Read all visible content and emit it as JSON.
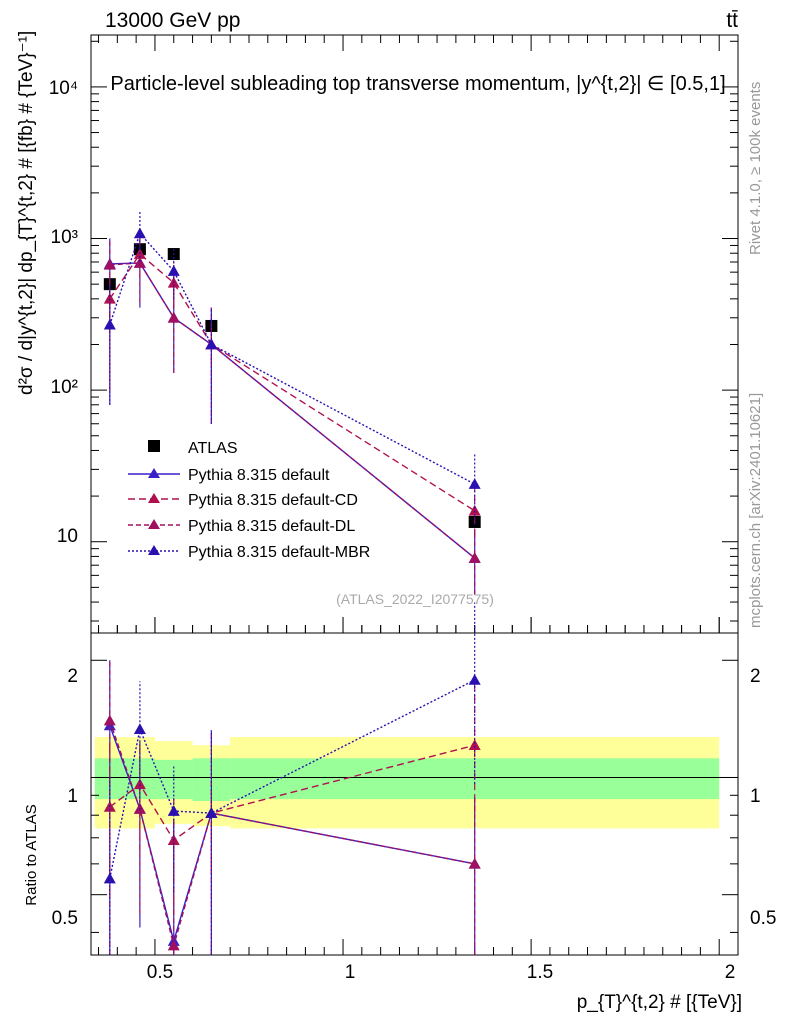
{
  "header": {
    "energy": "13000 GeV pp",
    "process": "tt̄",
    "title": "Particle-level subleading top transverse momentum, |y^{t,2}| ∈ [0.5,1]",
    "watermark": "(ATLAS_2022_I2077575)",
    "rivet": "Rivet 4.1.0, ≥ 100k events",
    "mcplots": "mcplots.cern.ch [arXiv:2401.10621]"
  },
  "labels": {
    "ylabel_main": "d²σ / d|y^{t,2}| dp_{T}^{t,2} # [{fb} # {TeV}⁻¹]",
    "ylabel_ratio": "Ratio to ATLAS",
    "xlabel": "p_{T}^{t,2} # [{TeV}]"
  },
  "axes": {
    "main_yticks": [
      "10",
      "10²",
      "10³",
      "10⁴"
    ],
    "ratio_yticks": [
      "0.5",
      "1",
      "2"
    ],
    "xticks": [
      "0.5",
      "1",
      "1.5",
      "2"
    ]
  },
  "chart_data": {
    "type": "line",
    "x": [
      0.38,
      0.46,
      0.55,
      0.65,
      1.35
    ],
    "bins": [
      [
        0.34,
        0.43
      ],
      [
        0.43,
        0.5
      ],
      [
        0.5,
        0.6
      ],
      [
        0.6,
        0.7
      ],
      [
        0.7,
        2.0
      ]
    ],
    "xlim": [
      0.33,
      2.05
    ],
    "ylim_main": [
      2.5,
      22000
    ],
    "ylim_ratio": [
      0.35,
      2.35
    ],
    "series": [
      {
        "name": "ATLAS",
        "color": "#000000",
        "values": [
          500,
          850,
          790,
          265,
          13.5
        ],
        "marker": "square"
      },
      {
        "name": "Pythia 8.315 default",
        "color": "#3a20c8",
        "dash": "",
        "values": [
          680,
          690,
          300,
          200,
          7.8
        ],
        "ratio": [
          1.36,
          0.83,
          0.38,
          0.81,
          0.6
        ],
        "err": [
          [
            80,
            1000
          ],
          [
            350,
            1050
          ],
          [
            130,
            620
          ],
          [
            60,
            350
          ],
          [
            4.5,
            12
          ]
        ]
      },
      {
        "name": "Pythia 8.315 default-CD",
        "color": "#b0104e",
        "dash": "7,4",
        "values": [
          400,
          790,
          510,
          200,
          16
        ],
        "ratio": [
          0.84,
          0.96,
          0.69,
          0.81,
          1.21
        ],
        "err": [
          [
            250,
            600
          ],
          [
            550,
            1050
          ],
          [
            350,
            700
          ],
          [
            150,
            260
          ],
          [
            11,
            24
          ]
        ]
      },
      {
        "name": "Pythia 8.315 default-DL",
        "color": "#a01060",
        "dash": "5,3",
        "values": [
          670,
          690,
          300,
          200,
          7.8
        ],
        "ratio": [
          1.4,
          0.83,
          0.37,
          0.81,
          0.6
        ],
        "err": [
          [
            100,
            1000
          ],
          [
            380,
            1000
          ],
          [
            130,
            620
          ],
          [
            60,
            350
          ],
          [
            4.5,
            12
          ]
        ]
      },
      {
        "name": "Pythia 8.315 default-MBR",
        "color": "#2a10b0",
        "dash": "2,2",
        "values": [
          270,
          1080,
          610,
          200,
          24
        ],
        "ratio": [
          0.55,
          1.33,
          0.82,
          0.81,
          1.78
        ],
        "err": [
          [
            80,
            500
          ],
          [
            700,
            1500
          ],
          [
            400,
            850
          ],
          [
            60,
            350
          ],
          [
            13,
            38
          ]
        ]
      }
    ],
    "ratio_bands": {
      "green_low": [
        0.88,
        0.88,
        0.88,
        0.87,
        0.88
      ],
      "green_high": [
        1.12,
        1.12,
        1.11,
        1.12,
        1.12
      ],
      "yellow_low": [
        0.74,
        0.74,
        0.76,
        0.75,
        0.74
      ],
      "yellow_high": [
        1.27,
        1.27,
        1.24,
        1.21,
        1.27
      ]
    }
  }
}
